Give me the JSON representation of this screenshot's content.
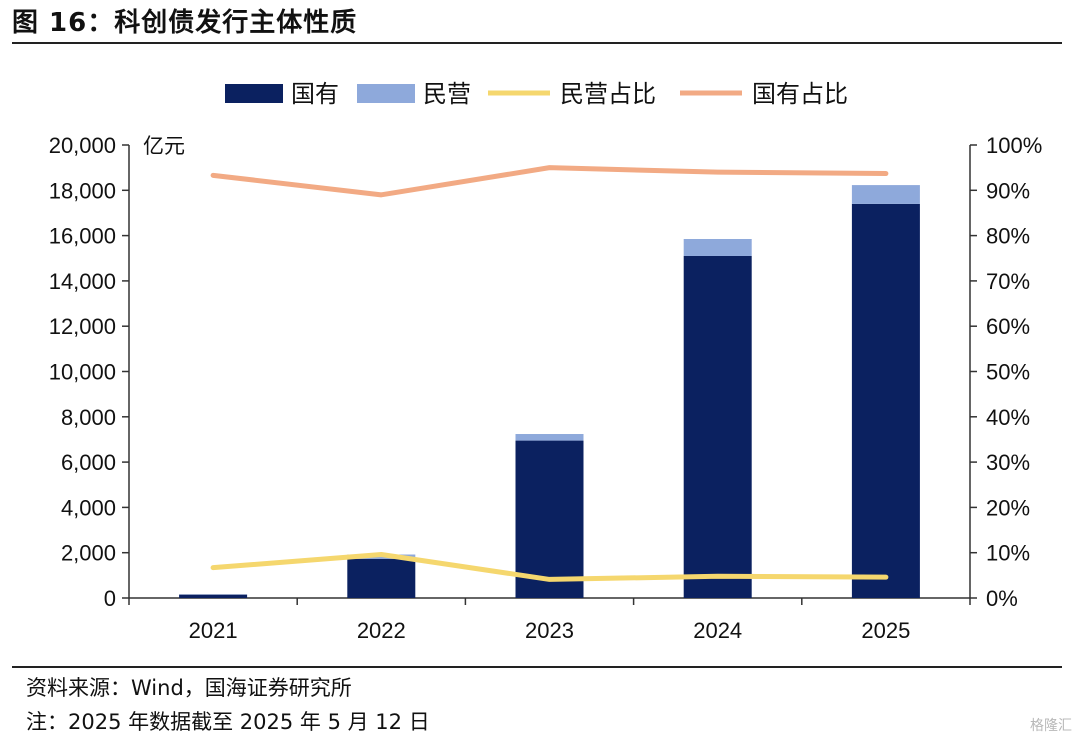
{
  "figure": {
    "title": "图 16：科创债发行主体性质",
    "source": "资料来源：Wind，国海证券研究所",
    "note": "注：2025 年数据截至 2025 年 5 月 12 日",
    "watermark": "格隆汇"
  },
  "colors": {
    "state_owned": "#0b2160",
    "private": "#8ea9db",
    "private_share_line": "#f5d76e",
    "state_share_line": "#f2aa84"
  },
  "chart_data": {
    "type": "bar",
    "stacked": true,
    "categories": [
      "2021",
      "2022",
      "2023",
      "2024",
      "2025"
    ],
    "series": [
      {
        "name": "国有",
        "type": "bar",
        "axis": "left",
        "values": [
          150,
          1730,
          6950,
          15100,
          17400
        ]
      },
      {
        "name": "民营",
        "type": "bar",
        "axis": "left",
        "values": [
          12,
          190,
          290,
          750,
          830
        ]
      },
      {
        "name": "民营占比",
        "type": "line",
        "axis": "right",
        "values": [
          6.7,
          9.6,
          4.1,
          4.8,
          4.6
        ]
      },
      {
        "name": "国有占比",
        "type": "line",
        "axis": "right",
        "values": [
          93.3,
          89.0,
          95.0,
          94.0,
          93.7
        ]
      }
    ],
    "y_left": {
      "unit": "亿元",
      "min": 0,
      "max": 20000,
      "step": 2000,
      "ticks": [
        "0",
        "2,000",
        "4,000",
        "6,000",
        "8,000",
        "10,000",
        "12,000",
        "14,000",
        "16,000",
        "18,000",
        "20,000"
      ]
    },
    "y_right": {
      "min": 0,
      "max": 100,
      "step": 10,
      "ticks": [
        "0%",
        "10%",
        "20%",
        "30%",
        "40%",
        "50%",
        "60%",
        "70%",
        "80%",
        "90%",
        "100%"
      ]
    },
    "legend": {
      "position": "top",
      "labels": [
        "国有",
        "民营",
        "民营占比",
        "国有占比"
      ]
    },
    "grid": false
  }
}
